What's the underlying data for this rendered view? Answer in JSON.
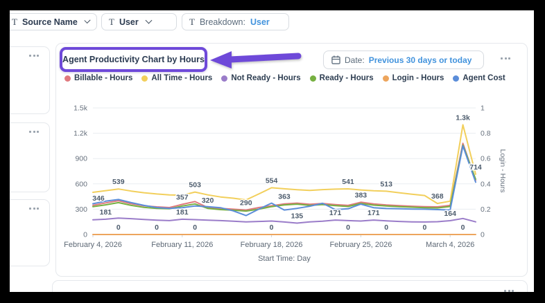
{
  "filter_bar": {
    "chips": [
      {
        "icon": "text-filter",
        "label": "Source Name",
        "has_chevron": true
      },
      {
        "icon": "text-filter",
        "label": "User",
        "has_chevron": true
      },
      {
        "icon": "text-filter",
        "prefix": "Breakdown:",
        "value": "User",
        "has_chevron": false
      }
    ]
  },
  "chart_card": {
    "title": "Agent Productivity Chart by Hours",
    "date_filter": {
      "label": "Date:",
      "value": "Previous 30 days or today"
    }
  },
  "colors": {
    "annotation_purple": "#6e49d9",
    "link_blue": "#4293dd"
  },
  "chart_data": {
    "type": "line",
    "title": "Agent Productivity Chart by Hours",
    "xlabel": "Start Time: Day",
    "legend_position": "top",
    "grid": true,
    "x": [
      "2026-02-04",
      "2026-02-05",
      "2026-02-06",
      "2026-02-07",
      "2026-02-08",
      "2026-02-09",
      "2026-02-10",
      "2026-02-11",
      "2026-02-12",
      "2026-02-13",
      "2026-02-14",
      "2026-02-15",
      "2026-02-16",
      "2026-02-17",
      "2026-02-18",
      "2026-02-19",
      "2026-02-20",
      "2026-02-21",
      "2026-02-22",
      "2026-02-23",
      "2026-02-24",
      "2026-02-25",
      "2026-02-26",
      "2026-02-27",
      "2026-02-28",
      "2026-03-01",
      "2026-03-02",
      "2026-03-03",
      "2026-03-04",
      "2026-03-05",
      "2026-03-06"
    ],
    "x_ticks": [
      {
        "index": 0,
        "label": "February 4, 2026"
      },
      {
        "index": 7,
        "label": "February 11, 2026"
      },
      {
        "index": 14,
        "label": "February 18, 2026"
      },
      {
        "index": 21,
        "label": "February 25, 2026"
      },
      {
        "index": 28,
        "label": "March 4, 2026"
      }
    ],
    "y_left": {
      "max": 1500,
      "ticks": [
        0,
        300,
        600,
        900,
        1200,
        1500
      ],
      "labels": [
        "0",
        "300",
        "600",
        "900",
        "1.2k",
        "1.5k"
      ]
    },
    "y_right": {
      "max": 1,
      "ticks": [
        0,
        0.2,
        0.4,
        0.6,
        0.8,
        1
      ],
      "labels": [
        "0",
        "0.2",
        "0.4",
        "0.6",
        "0.8",
        "1"
      ],
      "title": "Login - Hours"
    },
    "series": [
      {
        "name": "Billable - Hours",
        "color": "#e0797e",
        "axis": "left",
        "values": [
          346,
          375,
          400,
          365,
          340,
          328,
          320,
          357,
          390,
          320,
          310,
          300,
          290,
          320,
          340,
          363,
          372,
          358,
          368,
          355,
          345,
          383,
          362,
          350,
          342,
          335,
          330,
          328,
          345,
          1080,
          640
        ]
      },
      {
        "name": "All Time - Hours",
        "color": "#f2cf5b",
        "axis": "left",
        "values": [
          500,
          520,
          539,
          515,
          495,
          480,
          470,
          465,
          503,
          470,
          445,
          430,
          410,
          480,
          554,
          542,
          530,
          522,
          532,
          538,
          541,
          528,
          518,
          513,
          495,
          478,
          462,
          368,
          395,
          1300,
          714
        ]
      },
      {
        "name": "Not Ready - Hours",
        "color": "#9a7cc9",
        "axis": "left",
        "values": [
          175,
          181,
          195,
          188,
          178,
          170,
          165,
          181,
          176,
          170,
          165,
          158,
          150,
          155,
          160,
          148,
          135,
          150,
          158,
          171,
          165,
          160,
          171,
          162,
          155,
          150,
          148,
          152,
          164,
          190,
          150
        ]
      },
      {
        "name": "Ready - Hours",
        "color": "#76b041",
        "axis": "left",
        "values": [
          330,
          352,
          378,
          345,
          322,
          310,
          305,
          338,
          362,
          310,
          295,
          288,
          278,
          300,
          330,
          350,
          360,
          345,
          355,
          342,
          332,
          368,
          348,
          338,
          330,
          324,
          318,
          315,
          332,
          1060,
          655
        ]
      },
      {
        "name": "Login - Hours",
        "color": "#eda55d",
        "axis": "right",
        "values": [
          0,
          0,
          0,
          0,
          0,
          0,
          0,
          0,
          0,
          0,
          0,
          0,
          0,
          0,
          0,
          0,
          0,
          0,
          0,
          0,
          0,
          0,
          0,
          0,
          0,
          0,
          0,
          0,
          0,
          0,
          0
        ]
      },
      {
        "name": "Agent Cost",
        "color": "#5b8dd9",
        "axis": "left",
        "values": [
          365,
          395,
          415,
          378,
          345,
          320,
          310,
          318,
          338,
          330,
          318,
          280,
          225,
          300,
          372,
          290,
          310,
          335,
          370,
          295,
          305,
          360,
          318,
          308,
          305,
          302,
          300,
          295,
          290,
          1050,
          620
        ]
      }
    ],
    "point_labels": [
      {
        "series": "Billable - Hours",
        "index": 0,
        "text": "346",
        "dx": 8
      },
      {
        "series": "All Time - Hours",
        "index": 2,
        "text": "539"
      },
      {
        "series": "Not Ready - Hours",
        "index": 1,
        "text": "181"
      },
      {
        "series": "Billable - Hours",
        "index": 7,
        "text": "357"
      },
      {
        "series": "All Time - Hours",
        "index": 8,
        "text": "503"
      },
      {
        "series": "Billable - Hours",
        "index": 9,
        "text": "320"
      },
      {
        "series": "Not Ready - Hours",
        "index": 7,
        "text": "181"
      },
      {
        "series": "Billable - Hours",
        "index": 12,
        "text": "290"
      },
      {
        "series": "All Time - Hours",
        "index": 14,
        "text": "554"
      },
      {
        "series": "Billable - Hours",
        "index": 15,
        "text": "363"
      },
      {
        "series": "Not Ready - Hours",
        "index": 16,
        "text": "135"
      },
      {
        "series": "All Time - Hours",
        "index": 20,
        "text": "541"
      },
      {
        "series": "Billable - Hours",
        "index": 21,
        "text": "383"
      },
      {
        "series": "Not Ready - Hours",
        "index": 19,
        "text": "171"
      },
      {
        "series": "Not Ready - Hours",
        "index": 22,
        "text": "171"
      },
      {
        "series": "All Time - Hours",
        "index": 23,
        "text": "513"
      },
      {
        "series": "All Time - Hours",
        "index": 27,
        "text": "368"
      },
      {
        "series": "Not Ready - Hours",
        "index": 28,
        "text": "164"
      },
      {
        "series": "All Time - Hours",
        "index": 29,
        "text": "1.3k"
      },
      {
        "series": "All Time - Hours",
        "index": 30,
        "text": "714"
      },
      {
        "series": "Login - Hours",
        "index": 2,
        "text": "0"
      },
      {
        "series": "Login - Hours",
        "index": 5,
        "text": "0"
      },
      {
        "series": "Login - Hours",
        "index": 8,
        "text": "0"
      },
      {
        "series": "Login - Hours",
        "index": 14,
        "text": "0"
      },
      {
        "series": "Login - Hours",
        "index": 20,
        "text": "0"
      },
      {
        "series": "Login - Hours",
        "index": 23,
        "text": "0"
      },
      {
        "series": "Login - Hours",
        "index": 26,
        "text": "0"
      },
      {
        "series": "Login - Hours",
        "index": 29,
        "text": "0"
      }
    ]
  }
}
